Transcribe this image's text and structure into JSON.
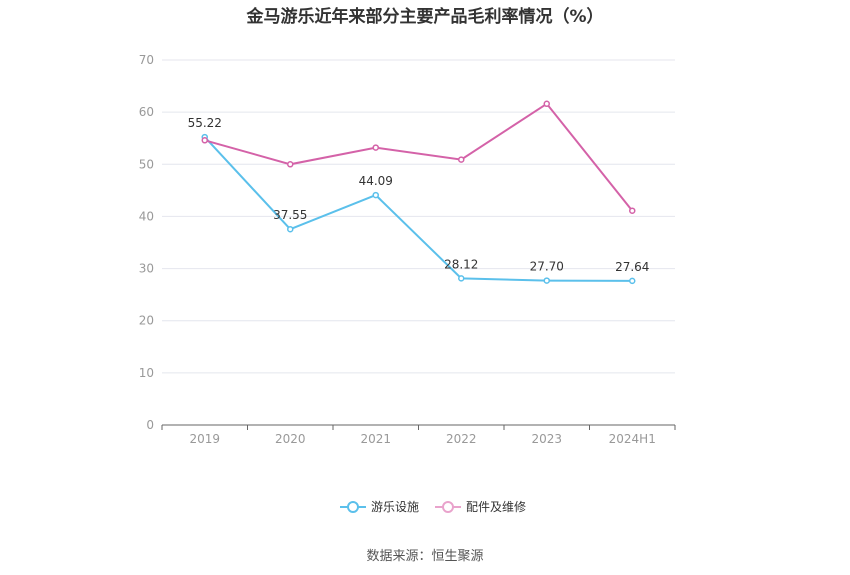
{
  "chart_data": {
    "type": "line",
    "title": "金马游乐近年来部分主要产品毛利率情况（%）",
    "categories": [
      "2019",
      "2020",
      "2021",
      "2022",
      "2023",
      "2024H1"
    ],
    "y_ticks": [
      "0",
      "10",
      "20",
      "30",
      "40",
      "50",
      "60",
      "70"
    ],
    "ylim": [
      0,
      70
    ],
    "grid": true,
    "legend_position": "bottom",
    "series": [
      {
        "name": "游乐设施",
        "color": "#5bc0eb",
        "values": [
          55.22,
          37.55,
          44.09,
          28.12,
          27.7,
          27.64
        ],
        "labels": [
          "55.22",
          "37.55",
          "44.09",
          "28.12",
          "27.70",
          "27.64"
        ]
      },
      {
        "name": "配件及维修",
        "color": "#d462a8",
        "legend_color": "#e9a3cc",
        "values": [
          54.6,
          50.0,
          53.2,
          50.9,
          61.6,
          41.1
        ],
        "labels": []
      }
    ]
  },
  "source": "数据来源：恒生聚源"
}
